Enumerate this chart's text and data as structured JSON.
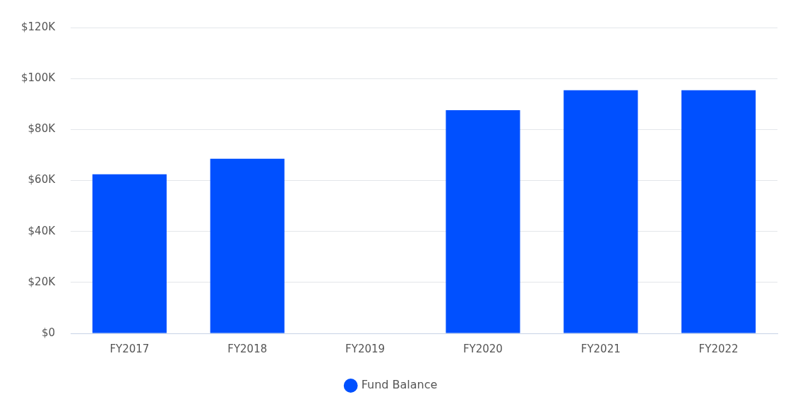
{
  "chart_data": {
    "type": "bar",
    "categories": [
      "FY2017",
      "FY2018",
      "FY2019",
      "FY2020",
      "FY2021",
      "FY2022"
    ],
    "series": [
      {
        "name": "Fund Balance",
        "color": "#0050ff",
        "values": [
          62400,
          68500,
          null,
          87600,
          95400,
          95400
        ]
      }
    ],
    "ylim": [
      0,
      120000
    ],
    "yticks": [
      {
        "value": 0,
        "label": "$0"
      },
      {
        "value": 20000,
        "label": "$20K"
      },
      {
        "value": 40000,
        "label": "$40K"
      },
      {
        "value": 60000,
        "label": "$60K"
      },
      {
        "value": 80000,
        "label": "$80K"
      },
      {
        "value": 100000,
        "label": "$100K"
      },
      {
        "value": 120000,
        "label": "$120K"
      }
    ],
    "grid": "y",
    "legend": "bottom"
  }
}
